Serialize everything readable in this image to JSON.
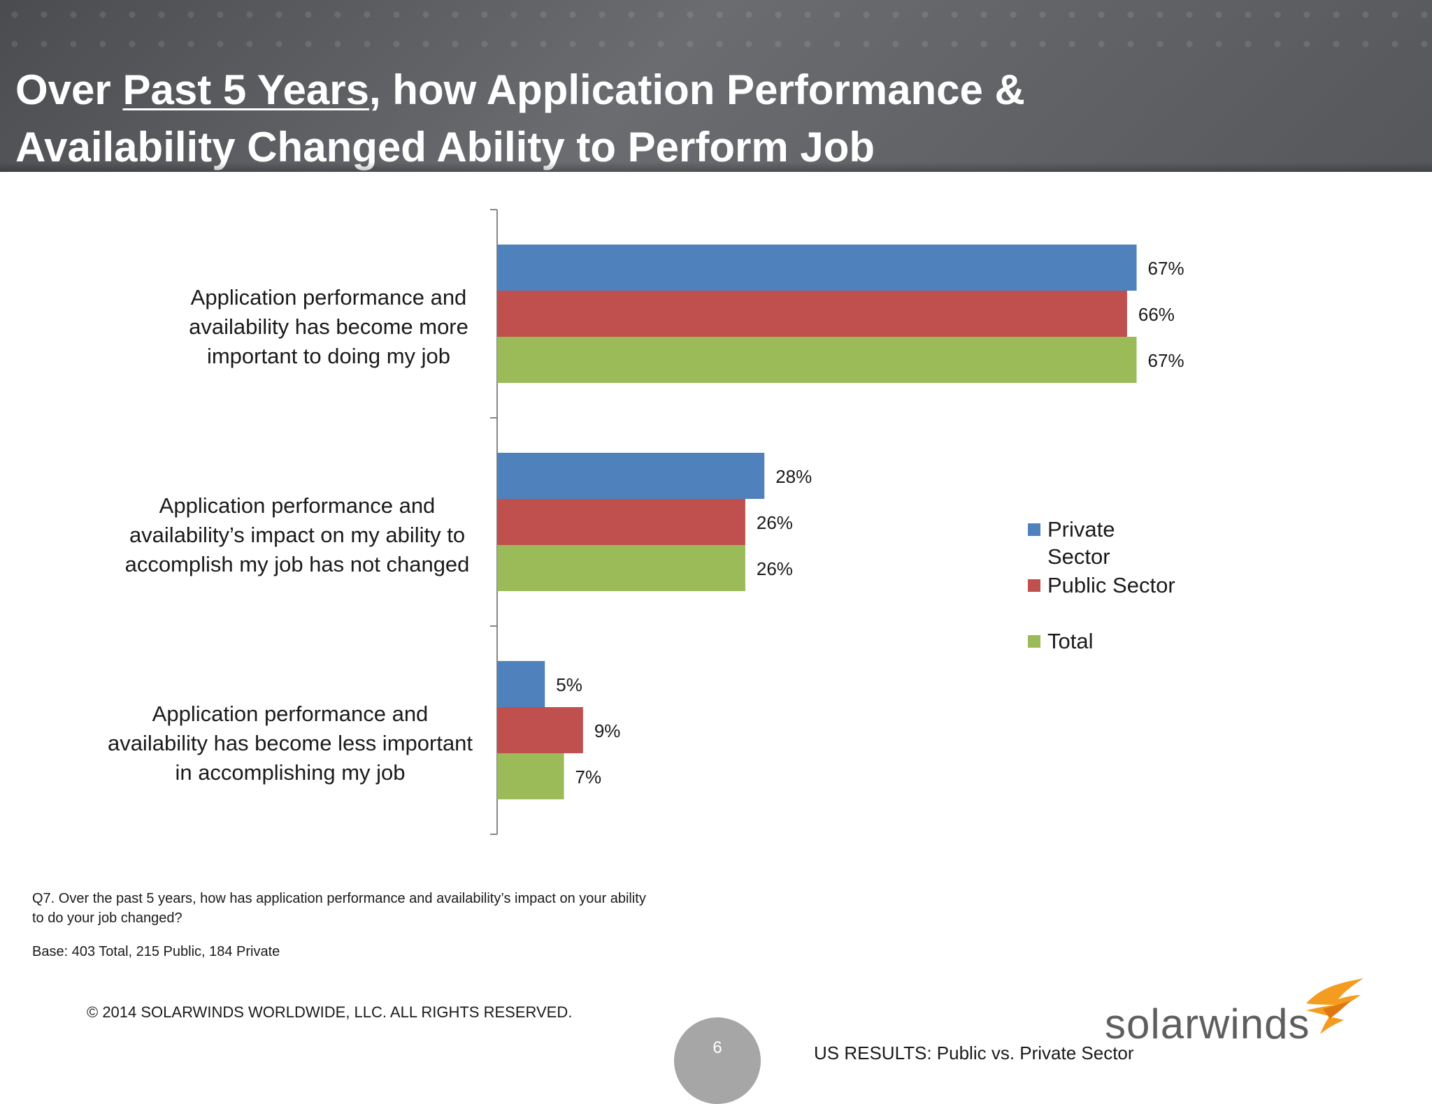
{
  "header": {
    "title_part1": "Over ",
    "title_underlined": "Past 5 Years",
    "title_part2": ", how Application Performance &",
    "title_line2": "Availability Changed Ability to Perform Job"
  },
  "chart_data": {
    "type": "bar",
    "orientation": "horizontal",
    "categories": [
      "Application performance and availability has become more important to doing my job",
      "Application performance and availability’s impact on my ability to accomplish my job has not changed",
      "Application performance and availability has become less important in accomplishing my job"
    ],
    "category_lines": [
      [
        "Application performance and",
        "availability has become more",
        "important to doing my job"
      ],
      [
        "Application performance and",
        "availability’s impact on my ability to",
        "accomplish my job has not changed"
      ],
      [
        "Application performance and",
        "availability has become less important",
        "in accomplishing my job"
      ]
    ],
    "series": [
      {
        "name": "Private Sector",
        "values": [
          67,
          28,
          5
        ],
        "labels": [
          "67%",
          "28%",
          "5%"
        ],
        "color": "#4f81bd"
      },
      {
        "name": "Public Sector",
        "values": [
          66,
          26,
          9
        ],
        "labels": [
          "66%",
          "26%",
          "9%"
        ],
        "color": "#c0504d"
      },
      {
        "name": "Total",
        "values": [
          67,
          26,
          7
        ],
        "labels": [
          "67%",
          "26%",
          "7%"
        ],
        "color": "#9bbb59"
      }
    ],
    "unit": "%",
    "xlim": [
      0,
      100
    ],
    "grid": false,
    "legend_position": "right"
  },
  "legend": {
    "items": [
      {
        "label": "Private Sector",
        "color": "#4f81bd"
      },
      {
        "label": "Public Sector",
        "color": "#c0504d"
      },
      {
        "label": "Total",
        "color": "#9bbb59"
      }
    ]
  },
  "footer": {
    "question": "Q7. Over the past 5 years, how has application performance and availability’s impact on your ability to do your job changed?",
    "base": "Base:  403  Total, 215 Public, 184 Private",
    "copyright": "© 2014 SOLARWINDS WORLDWIDE, LLC.  ALL RIGHTS RESERVED.",
    "page_number": "6",
    "results_label": "US RESULTS:  Public vs. Private Sector",
    "logo_text": "solarwinds"
  }
}
